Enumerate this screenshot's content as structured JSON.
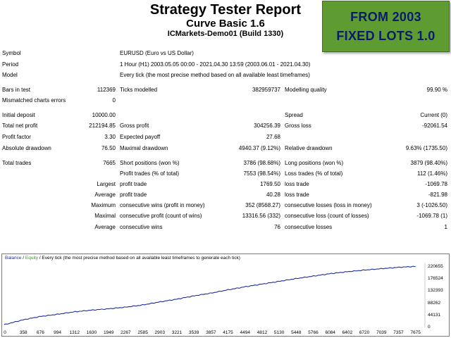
{
  "header": {
    "title": "Strategy Tester Report",
    "ea_name": "Curve Basic 1.6",
    "account": "ICMarkets-Demo01 (Build 1330)"
  },
  "badge": {
    "line1": "FROM 2003",
    "line2": "FIXED LOTS 1.0"
  },
  "info": {
    "symbol_label": "Symbol",
    "symbol_value": "EURUSD (Euro vs US Dollar)",
    "period_label": "Period",
    "period_value": "1 Hour (H1) 2003.05.05 00:00 - 2021.04.30 13:59 (2003.06.01 - 2021.04.30)",
    "model_label": "Model",
    "model_value": "Every tick (the most precise method based on all available least timeframes)"
  },
  "bars": {
    "bars_label": "Bars in test",
    "bars_value": "112369",
    "ticks_label": "Ticks modelled",
    "ticks_value": "382959737",
    "quality_label": "Modelling quality",
    "quality_value": "99.90 %",
    "mismatch_label": "Mismatched charts errors",
    "mismatch_value": "0"
  },
  "stats": {
    "deposit_label": "Initial deposit",
    "deposit_value": "10000.00",
    "spread_label": "Spread",
    "spread_value": "Current (0)",
    "net_label": "Total net profit",
    "net_value": "212194.85",
    "gross_profit_label": "Gross profit",
    "gross_profit_value": "304256.39",
    "gross_loss_label": "Gross loss",
    "gross_loss_value": "-92061.54",
    "pf_label": "Profit factor",
    "pf_value": "3.30",
    "payoff_label": "Expected payoff",
    "payoff_value": "27.68",
    "abs_dd_label": "Absolute drawdown",
    "abs_dd_value": "76.50",
    "max_dd_label": "Maximal drawdown",
    "max_dd_value": "4940.37 (9.12%)",
    "rel_dd_label": "Relative drawdown",
    "rel_dd_value": "9.63% (1735.50)"
  },
  "trades": {
    "total_label": "Total trades",
    "total_value": "7665",
    "short_label": "Short positions (won %)",
    "short_value": "3786 (98.68%)",
    "long_label": "Long positions (won %)",
    "long_value": "3879 (98.40%)",
    "profit_trades_label": "Profit trades (% of total)",
    "profit_trades_value": "7553 (98.54%)",
    "loss_trades_label": "Loss trades (% of total)",
    "loss_trades_value": "112 (1.46%)",
    "largest": "Largest",
    "largest_profit_label": "profit trade",
    "largest_profit_value": "1769.50",
    "largest_loss_label": "loss trade",
    "largest_loss_value": "-1069.78",
    "average": "Average",
    "avg_profit_label": "profit trade",
    "avg_profit_value": "40.28",
    "avg_loss_label": "loss trade",
    "avg_loss_value": "-821.98",
    "maximum": "Maximum",
    "max_wins_label": "consecutive wins (profit in money)",
    "max_wins_value": "352 (8568.27)",
    "max_losses_label": "consecutive losses (loss in money)",
    "max_losses_value": "3 (-1026.50)",
    "maximal": "Maximal",
    "maximal_profit_label": "consecutive profit (count of wins)",
    "maximal_profit_value": "13316.56 (332)",
    "maximal_loss_label": "consecutive loss (count of losses)",
    "maximal_loss_value": "-1069.78 (1)",
    "average2": "Average",
    "avg_wins_label": "consecutive wins",
    "avg_wins_value": "76",
    "avg_losses_label": "consecutive losses",
    "avg_losses_value": "1"
  },
  "chart_legend": {
    "balance": "Balance",
    "sep": " / ",
    "equity": "Equity",
    "rest": " / Every tick (the most precise method based on all available least timeframes to generate each tick)"
  },
  "colors": {
    "balance_line": "#1a2ea0",
    "badge_bg": "#5e9c32",
    "badge_text": "#0a1b6e"
  },
  "chart_data": {
    "type": "line",
    "title": "",
    "series": [
      {
        "name": "Balance",
        "x": [
          0,
          358,
          676,
          994,
          1312,
          1630,
          1949,
          2267,
          2585,
          2903,
          3221,
          3539,
          3857,
          4175,
          4494,
          4812,
          5130,
          5448,
          5766,
          6084,
          6402,
          6720,
          7039,
          7357,
          7675
        ],
        "values": [
          10000,
          28000,
          40000,
          48000,
          57000,
          63000,
          68000,
          74000,
          82000,
          93000,
          103000,
          115000,
          125000,
          137000,
          148000,
          158000,
          168000,
          178000,
          187000,
          196000,
          203000,
          209000,
          214000,
          219000,
          222194.85
        ]
      }
    ],
    "x_ticks": [
      "0",
      "358",
      "676",
      "994",
      "1312",
      "1630",
      "1949",
      "2267",
      "2585",
      "2903",
      "3221",
      "3539",
      "3857",
      "4175",
      "4494",
      "4812",
      "5130",
      "5448",
      "5766",
      "6084",
      "6402",
      "6720",
      "7039",
      "7357",
      "7675"
    ],
    "y_ticks": [
      "220655",
      "176524",
      "132393",
      "88262",
      "44131",
      "0"
    ],
    "y_tick_values": [
      220655,
      176524,
      132393,
      88262,
      44131,
      0
    ],
    "xlim": [
      0,
      7850
    ],
    "ylim": [
      0,
      236000
    ]
  }
}
